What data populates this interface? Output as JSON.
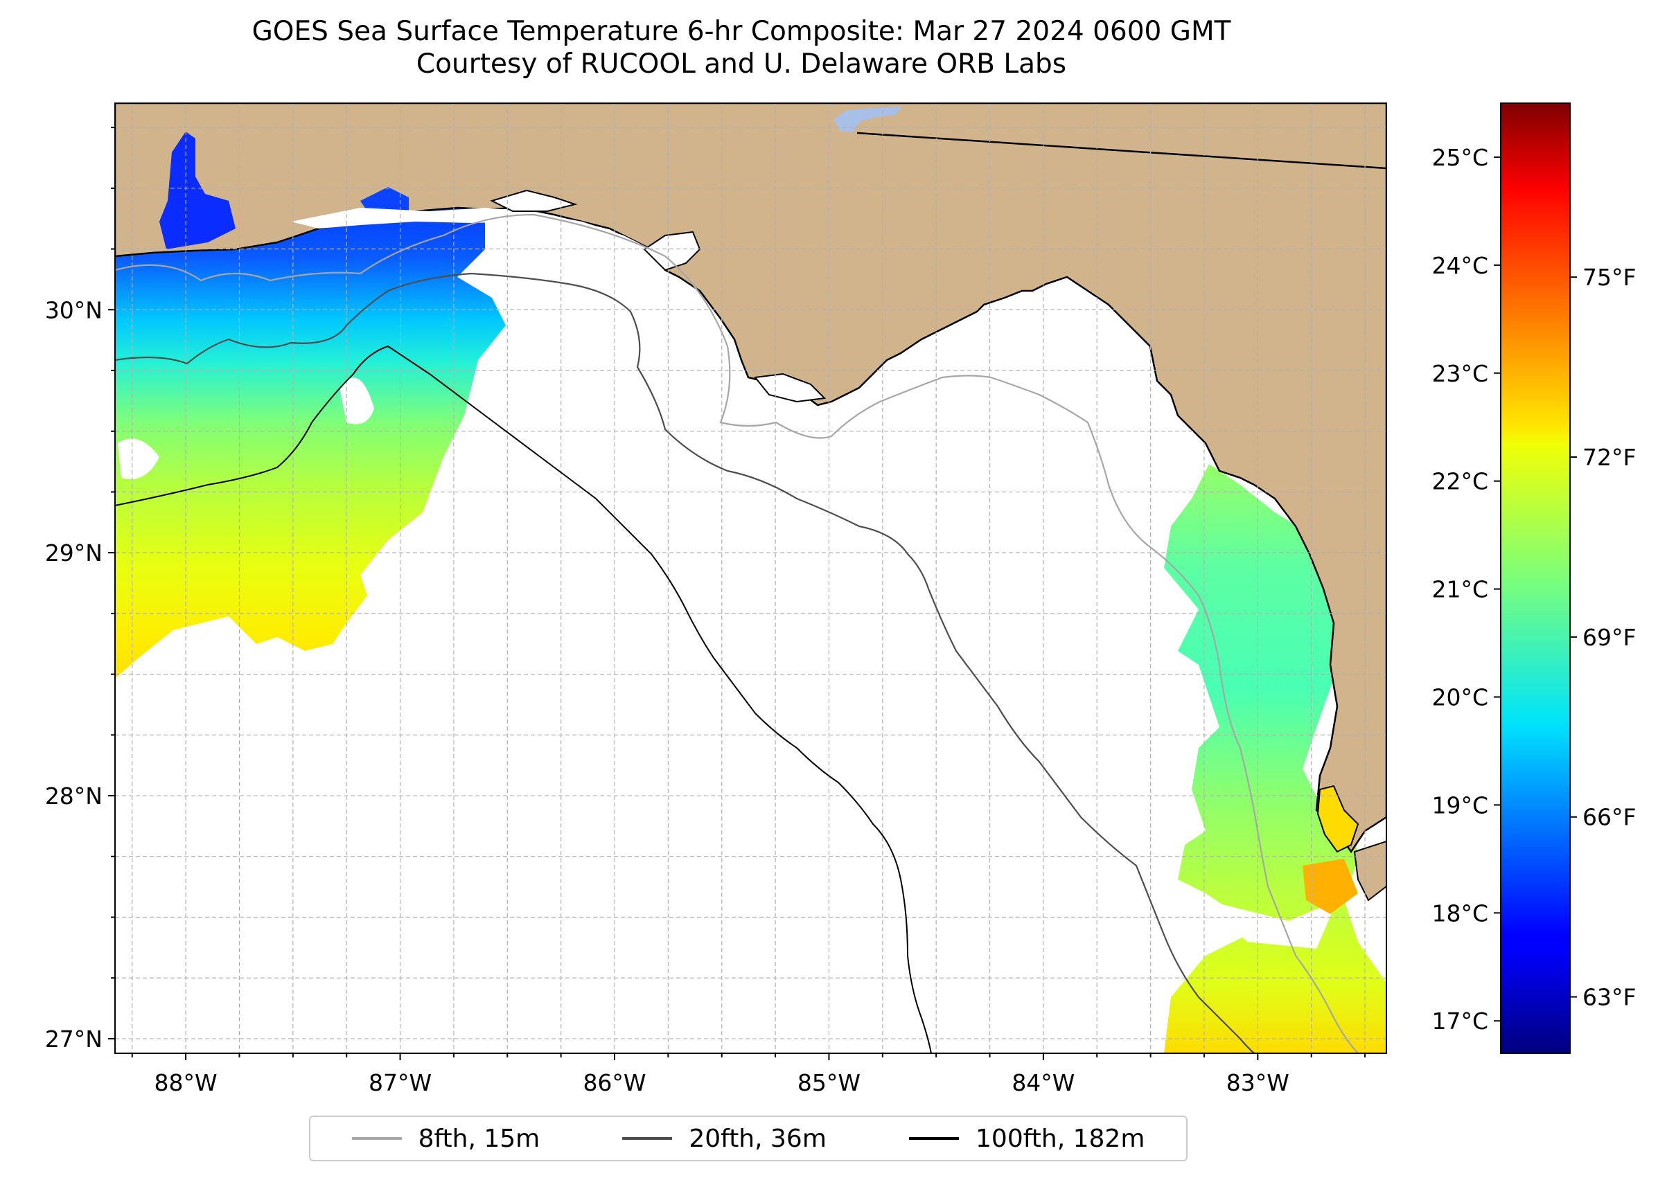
{
  "title": {
    "line1": "GOES Sea Surface Temperature 6-hr Composite: Mar 27 2024 0600 GMT",
    "line2": "Courtesy of RUCOOL and U. Delaware ORB Labs"
  },
  "map": {
    "lon_range": [
      -88.33,
      -82.4
    ],
    "lat_range": [
      26.94,
      30.85
    ],
    "lon_ticks": [
      {
        "value": -88,
        "label": "88°W"
      },
      {
        "value": -87,
        "label": "87°W"
      },
      {
        "value": -86,
        "label": "86°W"
      },
      {
        "value": -85,
        "label": "85°W"
      },
      {
        "value": -84,
        "label": "84°W"
      },
      {
        "value": -83,
        "label": "83°W"
      }
    ],
    "lat_ticks": [
      {
        "value": 30,
        "label": "30°N"
      },
      {
        "value": 29,
        "label": "29°N"
      },
      {
        "value": 28,
        "label": "28°N"
      },
      {
        "value": 27,
        "label": "27°N"
      }
    ],
    "land_color": "#d2b48c",
    "grid": true
  },
  "colorbar": {
    "colormap": "jet",
    "celsius_range": [
      16.7,
      25.5
    ],
    "celsius_ticks": [
      {
        "value": 25,
        "label": "25°C"
      },
      {
        "value": 24,
        "label": "24°C"
      },
      {
        "value": 23,
        "label": "23°C"
      },
      {
        "value": 22,
        "label": "22°C"
      },
      {
        "value": 21,
        "label": "21°C"
      },
      {
        "value": 20,
        "label": "20°C"
      },
      {
        "value": 19,
        "label": "19°C"
      },
      {
        "value": 18,
        "label": "18°C"
      },
      {
        "value": 17,
        "label": "17°C"
      }
    ],
    "fahrenheit_ticks": [
      {
        "value": 75,
        "label": "75°F"
      },
      {
        "value": 72,
        "label": "72°F"
      },
      {
        "value": 69,
        "label": "69°F"
      },
      {
        "value": 66,
        "label": "66°F"
      },
      {
        "value": 63,
        "label": "63°F"
      }
    ]
  },
  "legend": {
    "items": [
      {
        "label": "8fth, 15m",
        "color": "#a6a6a6"
      },
      {
        "label": "20fth, 36m",
        "color": "#4d4d4d"
      },
      {
        "label": "100fth, 182m",
        "color": "#000000"
      }
    ]
  }
}
